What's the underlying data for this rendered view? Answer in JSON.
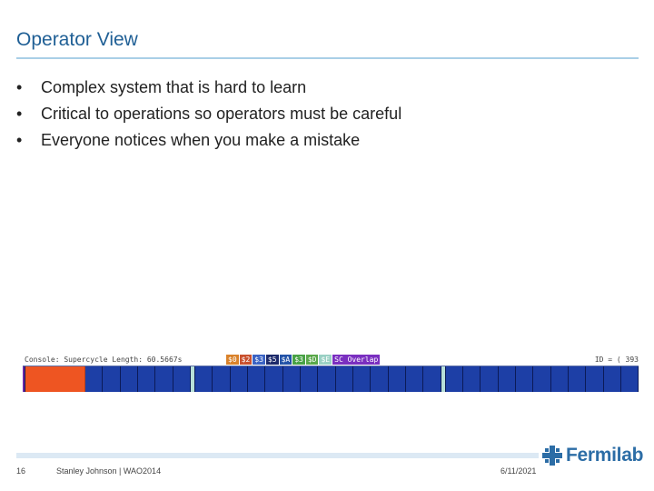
{
  "slide": {
    "title": "Operator View",
    "bullets": [
      "Complex system that is hard to learn",
      "Critical to operations so operators must be careful",
      "Everyone notices when you make a mistake"
    ],
    "bullet_char": "•"
  },
  "console": {
    "label": "Console: Supercycle Length: 60.5667s",
    "tags": [
      {
        "text": "$0",
        "color": "#d9822b"
      },
      {
        "text": "$2",
        "color": "#c9512f"
      },
      {
        "text": "$3",
        "color": "#3b63c4"
      },
      {
        "text": "$5",
        "color": "#1d2a6b"
      },
      {
        "text": "$A",
        "color": "#2454a8"
      },
      {
        "text": "$3",
        "color": "#49a246"
      },
      {
        "text": "$D",
        "color": "#5aa84a"
      },
      {
        "text": "$E",
        "color": "#9ad0c4"
      },
      {
        "text": "SC Overlap",
        "color": "#7a2fc0"
      }
    ],
    "right_text": "ID = ( 393"
  },
  "footer": {
    "page_number": "16",
    "text": "Stanley Johnson | WAO2014",
    "date": "6/11/2021",
    "logo_text": "Fermilab"
  },
  "colors": {
    "title": "#1f5f95",
    "rule": "#a9cfe7",
    "bar_blue": "#1d3fa6",
    "bar_orange": "#ee5522"
  }
}
